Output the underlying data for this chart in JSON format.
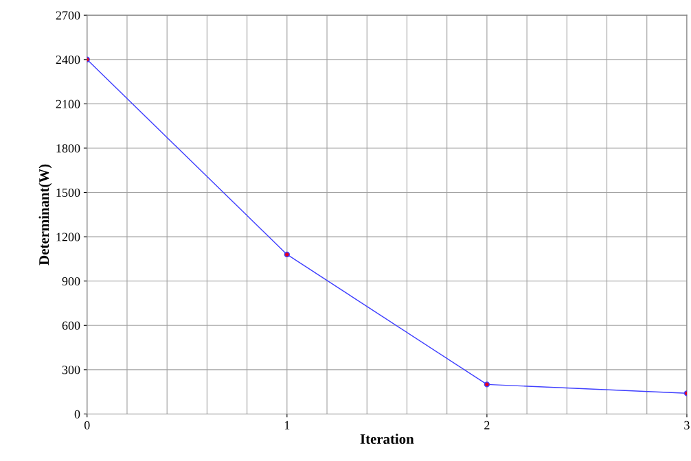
{
  "chart_data": {
    "type": "line",
    "xlabel": "Iteration",
    "ylabel": "Determinant(W)",
    "x": [
      0,
      1,
      2,
      3
    ],
    "series": [
      {
        "color": "#3f3fff",
        "values": [
          2400,
          1080,
          200,
          140
        ]
      }
    ],
    "xlim": [
      0,
      3
    ],
    "ylim": [
      0,
      2700
    ],
    "xticks": [
      0,
      {
        "value": 0.2,
        "label": null
      },
      {
        "value": 0.4,
        "label": null
      },
      {
        "value": 0.6,
        "label": null
      },
      {
        "value": 0.8,
        "label": null
      },
      1,
      {
        "value": 1.2,
        "label": null
      },
      {
        "value": 1.4,
        "label": null
      },
      {
        "value": 1.6,
        "label": null
      },
      {
        "value": 1.8,
        "label": null
      },
      2,
      {
        "value": 2.2,
        "label": null
      },
      {
        "value": 2.4,
        "label": null
      },
      {
        "value": 2.6,
        "label": null
      },
      {
        "value": 2.8,
        "label": null
      },
      3
    ],
    "yticks": [
      0,
      300,
      600,
      900,
      1200,
      1500,
      1800,
      2100,
      2400,
      2700
    ],
    "grid": true,
    "marker": "circle",
    "line_style": "solid"
  }
}
